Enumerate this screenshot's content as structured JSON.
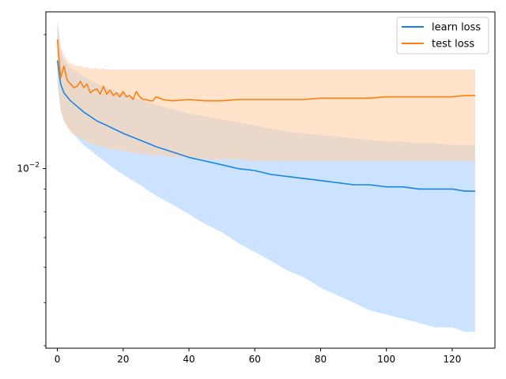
{
  "chart_data": {
    "type": "line",
    "title": "",
    "xlabel": "",
    "ylabel": "",
    "yscale": "log",
    "xlim": [
      -3.5,
      133
    ],
    "ylim": [
      0.00395,
      0.0225
    ],
    "x_ticks": [
      0,
      20,
      40,
      60,
      80,
      100,
      120
    ],
    "x_tick_labels": [
      "0",
      "20",
      "40",
      "60",
      "80",
      "100",
      "120"
    ],
    "y_major_ticks": [
      0.01
    ],
    "y_major_tick_labels": [
      "10^-2"
    ],
    "y_minor_ticks": [
      0.004,
      0.005,
      0.006,
      0.007,
      0.008,
      0.009,
      0.02
    ],
    "grid": false,
    "legend_position": "top-right",
    "series": [
      {
        "name": "learn loss",
        "color": "#1a84e6",
        "band_color": "#a8d1ff",
        "x": [
          0,
          1,
          2,
          4,
          6,
          8,
          10,
          12,
          15,
          18,
          20,
          25,
          30,
          35,
          40,
          45,
          50,
          55,
          60,
          65,
          70,
          75,
          80,
          85,
          90,
          95,
          100,
          105,
          110,
          115,
          120,
          124,
          127
        ],
        "values": [
          0.0175,
          0.0155,
          0.0148,
          0.0142,
          0.0138,
          0.0134,
          0.0131,
          0.0128,
          0.0125,
          0.0122,
          0.012,
          0.0116,
          0.0112,
          0.0109,
          0.0106,
          0.0104,
          0.0102,
          0.01,
          0.0099,
          0.0097,
          0.0096,
          0.0095,
          0.0094,
          0.0093,
          0.0092,
          0.0092,
          0.0091,
          0.0091,
          0.009,
          0.009,
          0.009,
          0.0089,
          0.0089
        ],
        "lower": [
          0.0155,
          0.0135,
          0.0128,
          0.0122,
          0.0117,
          0.0113,
          0.011,
          0.0107,
          0.0103,
          0.0099,
          0.0097,
          0.0092,
          0.0087,
          0.0083,
          0.0079,
          0.0075,
          0.0072,
          0.0068,
          0.0065,
          0.0062,
          0.0059,
          0.0057,
          0.0054,
          0.0052,
          0.005,
          0.0048,
          0.0047,
          0.0046,
          0.0045,
          0.0044,
          0.0044,
          0.0043,
          0.0043
        ],
        "upper": [
          0.0215,
          0.0185,
          0.0175,
          0.0168,
          0.0165,
          0.0161,
          0.0158,
          0.0155,
          0.0152,
          0.0149,
          0.0147,
          0.0143,
          0.0139,
          0.0136,
          0.0133,
          0.0131,
          0.0129,
          0.0127,
          0.0125,
          0.0123,
          0.0121,
          0.012,
          0.0119,
          0.0118,
          0.0117,
          0.0116,
          0.0115,
          0.0115,
          0.0114,
          0.0114,
          0.0113,
          0.0113,
          0.0113
        ]
      },
      {
        "name": "test loss",
        "color": "#ff7f0e",
        "band_color": "#ffd1a8",
        "x": [
          0,
          1,
          2,
          3,
          4,
          5,
          6,
          7,
          8,
          9,
          10,
          11,
          12,
          13,
          14,
          15,
          16,
          17,
          18,
          19,
          20,
          21,
          22,
          23,
          24,
          25,
          26,
          27,
          28,
          29,
          30,
          32,
          35,
          40,
          45,
          50,
          55,
          60,
          65,
          70,
          75,
          80,
          85,
          90,
          95,
          100,
          105,
          110,
          115,
          120,
          124,
          127
        ],
        "values": [
          0.0195,
          0.016,
          0.017,
          0.0158,
          0.0155,
          0.0152,
          0.0153,
          0.0157,
          0.0152,
          0.0155,
          0.0148,
          0.015,
          0.0151,
          0.0147,
          0.0153,
          0.0147,
          0.015,
          0.0146,
          0.0148,
          0.0145,
          0.0149,
          0.0145,
          0.0146,
          0.0143,
          0.0149,
          0.0145,
          0.0143,
          0.0143,
          0.0142,
          0.0142,
          0.0145,
          0.0143,
          0.0142,
          0.0143,
          0.0142,
          0.0142,
          0.0143,
          0.0143,
          0.0143,
          0.0143,
          0.0143,
          0.0144,
          0.0144,
          0.0144,
          0.0144,
          0.0145,
          0.0145,
          0.0145,
          0.0145,
          0.0145,
          0.0146,
          0.0146
        ],
        "lower": [
          0.0165,
          0.0135,
          0.0128,
          0.0124,
          0.0121,
          0.0119,
          0.0118,
          0.0117,
          0.0116,
          0.0115,
          0.0114,
          0.0113,
          0.0113,
          0.0112,
          0.0112,
          0.0111,
          0.0111,
          0.011,
          0.011,
          0.011,
          0.011,
          0.0109,
          0.0109,
          0.0109,
          0.0108,
          0.0108,
          0.0108,
          0.0108,
          0.0107,
          0.0107,
          0.0107,
          0.0107,
          0.0106,
          0.0106,
          0.0105,
          0.0105,
          0.0105,
          0.0104,
          0.0104,
          0.0104,
          0.0104,
          0.0104,
          0.0104,
          0.0104,
          0.0104,
          0.0104,
          0.0104,
          0.0104,
          0.0104,
          0.0104,
          0.0104,
          0.0104
        ],
        "upper": [
          0.0215,
          0.0188,
          0.018,
          0.0175,
          0.0172,
          0.0171,
          0.017,
          0.017,
          0.0169,
          0.0169,
          0.0168,
          0.0168,
          0.0168,
          0.0167,
          0.0168,
          0.0167,
          0.0167,
          0.0167,
          0.0167,
          0.0167,
          0.0167,
          0.0167,
          0.0167,
          0.0167,
          0.0167,
          0.0167,
          0.0167,
          0.0167,
          0.0167,
          0.0167,
          0.0167,
          0.0167,
          0.0167,
          0.0167,
          0.0167,
          0.0167,
          0.0167,
          0.0167,
          0.0167,
          0.0167,
          0.0167,
          0.0167,
          0.0167,
          0.0167,
          0.0167,
          0.0167,
          0.0167,
          0.0167,
          0.0167,
          0.0167,
          0.0167,
          0.0167
        ]
      }
    ]
  }
}
